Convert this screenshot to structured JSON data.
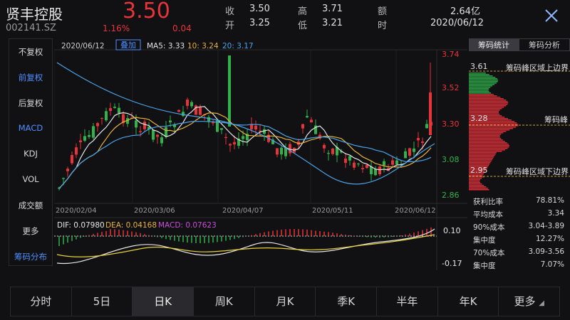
{
  "stock": {
    "name": "贤丰控股",
    "code": "002141.SZ",
    "price": "3.50",
    "change_pct": "1.16%",
    "change_amt": "0.04"
  },
  "quotes": [
    {
      "label": "收",
      "value": "3.50"
    },
    {
      "label": "高",
      "value": "3.71"
    },
    {
      "label": "额",
      "value": "2.64亿"
    },
    {
      "label": "开",
      "value": "3.25"
    },
    {
      "label": "低",
      "value": "3.21"
    },
    {
      "label": "时",
      "value": "2020/06/12"
    }
  ],
  "left_menu": [
    {
      "label": "不复权",
      "active": false
    },
    {
      "label": "前复权",
      "active": true
    },
    {
      "label": "后复权",
      "active": false
    },
    {
      "label": "MACD",
      "active": true
    },
    {
      "label": "KDJ",
      "active": false
    },
    {
      "label": "VOL",
      "active": false
    },
    {
      "label": "成交额",
      "active": false
    },
    {
      "label": "更多",
      "active": false
    },
    {
      "label": "筹码分布",
      "active": true
    }
  ],
  "chart_header": {
    "date": "2020/06/12",
    "overlay_button": "叠加",
    "ma5_label": "MA5:",
    "ma5_value": "3.33",
    "ma10_label": "10:",
    "ma10_value": "3.24",
    "ma20_label": "20:",
    "ma20_value": "3.17"
  },
  "y_ticks": [
    "3.74",
    "3.52",
    "3.30",
    "3.08",
    "2.86"
  ],
  "x_dates": [
    "2020/02/04",
    "2020/03/06",
    "2020/04/07",
    "2020/05/11",
    "2020/06/12"
  ],
  "macd": {
    "dif_label": "DIF:",
    "dif_value": "0.07980",
    "dea_label": "DEA:",
    "dea_value": "0.04168",
    "macd_label": "MACD:",
    "macd_value": "0.07623",
    "ytick_high": "0.10",
    "ytick_low": "-0.17"
  },
  "right_panel": {
    "tab_stats": "筹码统计",
    "tab_analysis": "筹码分析",
    "upper_price": "3.61",
    "upper_label": "筹码峰区域上边界",
    "peak_price": "3.28",
    "peak_label": "筹码峰",
    "lower_price": "2.95",
    "lower_label": "筹码峰区域下边界",
    "stats": [
      {
        "label": "获利比率",
        "value": "78.81%"
      },
      {
        "label": "平均成本",
        "value": "3.34"
      },
      {
        "label": "90%成本",
        "value": "3.04-3.89"
      },
      {
        "label": "集中度",
        "value": "12.27%"
      },
      {
        "label": "70%成本",
        "value": "3.09-3.56"
      },
      {
        "label": "集中度",
        "value": "7.07%"
      }
    ]
  },
  "bottom_tabs": [
    {
      "label": "分时",
      "active": false
    },
    {
      "label": "5日",
      "active": false
    },
    {
      "label": "日K",
      "active": true
    },
    {
      "label": "周K",
      "active": false
    },
    {
      "label": "月K",
      "active": false
    },
    {
      "label": "季K",
      "active": false
    },
    {
      "label": "半年",
      "active": false
    },
    {
      "label": "年K",
      "active": false
    },
    {
      "label": "更多",
      "active": false
    }
  ],
  "colors": {
    "up": "#e8333a",
    "down": "#2fb34a",
    "ma5": "#e6e6e6",
    "ma10": "#e8b23a",
    "ma20": "#4aa3e8",
    "active_blue": "#4f8fff",
    "dashed": "#c9a13a"
  }
}
